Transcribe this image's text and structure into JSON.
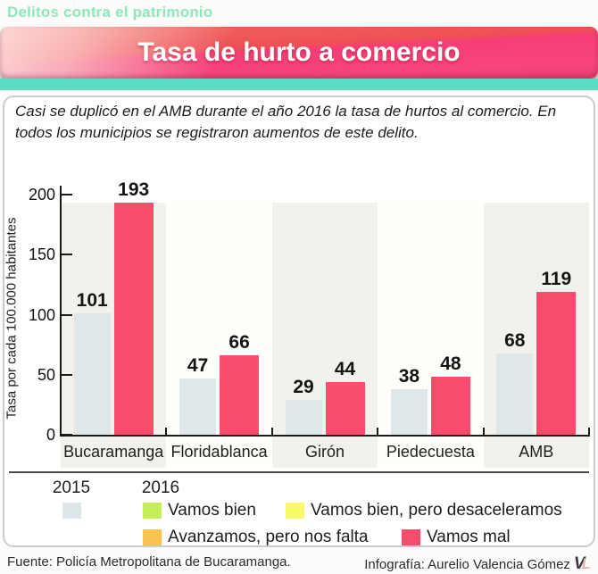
{
  "header": {
    "kicker": "Delitos contra el patrimonio",
    "title": "Tasa de hurto a comercio"
  },
  "intro": {
    "text": "Casi se duplicó en el AMB durante el año 2016 la tasa de hurtos al comercio. En todos los municipios se registraron aumentos de este delito."
  },
  "chart_data": {
    "type": "bar",
    "categories": [
      "Bucaramanga",
      "Floridablanca",
      "Girón",
      "Piedecuesta",
      "AMB"
    ],
    "series": [
      {
        "name": "2015",
        "values": [
          101,
          47,
          29,
          38,
          68
        ],
        "color": "#dfe7e9"
      },
      {
        "name": "2016",
        "values": [
          193,
          66,
          44,
          48,
          119
        ],
        "color": "#fa4d6d"
      }
    ],
    "title": "Tasa de hurto a comercio",
    "xlabel": "",
    "ylabel": "Tasa por cada 100.000 habitantes",
    "yticks": [
      0,
      50,
      100,
      150,
      200
    ],
    "ylim": [
      0,
      200
    ],
    "grid": false,
    "band_top_value": 193,
    "legend_position": "bottom"
  },
  "legend": {
    "col_2015": "2015",
    "col_2016": "2016",
    "swatch_2015_color": "#dde6e9",
    "items_2016": [
      {
        "label": "Vamos bien",
        "color": "#c6ee58"
      },
      {
        "label": "Vamos bien, pero desaceleramos",
        "color": "#f7f96b"
      },
      {
        "label": "Avanzamos, pero nos falta",
        "color": "#fbc44f"
      },
      {
        "label": "Vamos mal",
        "color": "#fa4d6d"
      }
    ]
  },
  "footer": {
    "source": "Fuente: Policía Metropolitana de Bucaramanga.",
    "credit": "Infografía: Aurelio Valencia Gómez",
    "logo": "VL"
  },
  "colors": {
    "accent_pink": "#fa4d6d",
    "bar_2015": "#dfe7e9",
    "band_shaded": "#f3f1ec",
    "band_plain": "#fffefb",
    "teal_strip": "#5cdcc2",
    "mint_text": "#8fe7ba",
    "banner_coral": "#f0695f",
    "banner_pink": "#f6437b"
  }
}
